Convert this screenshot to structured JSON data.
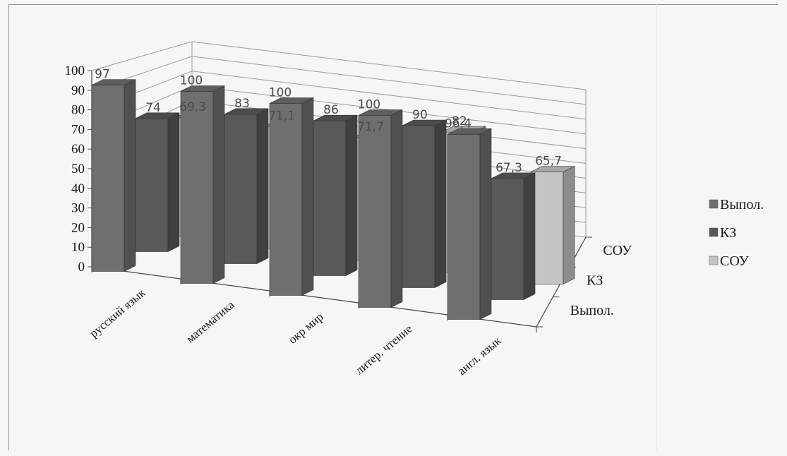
{
  "chart_data": {
    "type": "bar",
    "categories": [
      "русский язык",
      "математика",
      "окр мир",
      "литер. чтение",
      "англ. язык"
    ],
    "series": [
      {
        "name": "Выпол.",
        "values": [
          97,
          100,
          100,
          100,
          96.4
        ],
        "labels": [
          "97",
          "100",
          "100",
          "100",
          "96,4"
        ]
      },
      {
        "name": "КЗ",
        "values": [
          74,
          83,
          86,
          90,
          67.3
        ],
        "labels": [
          "74",
          "83",
          "86",
          "90",
          "67,3"
        ]
      },
      {
        "name": "СОУ",
        "values": [
          69.3,
          71.1,
          71.7,
          82,
          65.7
        ],
        "labels": [
          "69,3",
          "71,1",
          "71,7",
          "82",
          "65,7"
        ]
      }
    ],
    "y_ticks": [
      "0",
      "10",
      "20",
      "30",
      "40",
      "50",
      "60",
      "70",
      "80",
      "90",
      "100"
    ],
    "ylim": [
      0,
      100
    ],
    "depth_axis_labels": [
      "Выпол.",
      "КЗ",
      "СОУ"
    ],
    "legend": {
      "position": "right",
      "entries": [
        "Выпол.",
        "КЗ",
        "СОУ"
      ]
    },
    "grid": true,
    "colors": {
      "Выпол.": "#6f6f6f",
      "КЗ": "#595959",
      "СОУ": "#c4c4c4"
    }
  }
}
